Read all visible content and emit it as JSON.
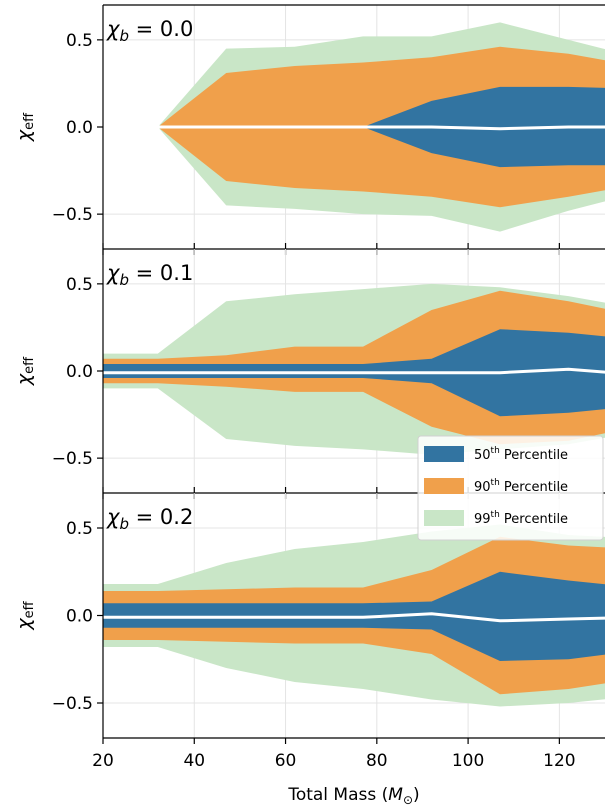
{
  "chart_data": {
    "type": "area",
    "x": [
      20,
      32,
      47,
      62,
      77,
      92,
      107,
      122,
      137
    ],
    "xlim": [
      20,
      130
    ],
    "xticks": [
      20,
      40,
      60,
      80,
      100,
      120
    ],
    "xticklabels": [
      "20",
      "40",
      "60",
      "80",
      "100",
      "120"
    ],
    "xlabel_text": "Total Mass (",
    "xlabel_symbol": "M",
    "xlabel_sub": "⊙",
    "xlabel_close": ")",
    "ylim": [
      -0.7,
      0.7
    ],
    "yticks": [
      -0.5,
      0.0,
      0.5
    ],
    "yticklabels": [
      "−0.5",
      "0.0",
      "0.5"
    ],
    "ylabel_symbol": "χ",
    "ylabel_sub": "eff",
    "grid": true,
    "colors": {
      "p50": "#3274a1",
      "p90": "#f0a04b",
      "p99": "#c9e6c7",
      "median": "#ffffff",
      "grid": "#e4e4e4"
    },
    "legend": {
      "placement": "lower-right of middle panel",
      "entries": [
        {
          "key": "p50",
          "prefix": "50",
          "sup": "th",
          "suffix": " Percentile"
        },
        {
          "key": "p90",
          "prefix": "90",
          "sup": "th",
          "suffix": " Percentile"
        },
        {
          "key": "p99",
          "prefix": "99",
          "sup": "th",
          "suffix": " Percentile"
        }
      ]
    },
    "panels": [
      {
        "label_symbol": "χ",
        "label_sub": "b",
        "label_value": " = 0.0",
        "median": [
          0,
          0,
          0,
          0,
          0,
          0,
          -0.01,
          0,
          0
        ],
        "p50": {
          "upper": [
            0,
            0,
            0,
            0,
            0,
            0.15,
            0.23,
            0.23,
            0.22
          ],
          "lower": [
            0,
            0,
            0,
            0,
            0,
            -0.15,
            -0.23,
            -0.22,
            -0.22
          ]
        },
        "p90": {
          "upper": [
            0,
            0,
            0.31,
            0.35,
            0.37,
            0.4,
            0.46,
            0.42,
            0.35
          ],
          "lower": [
            0,
            0,
            -0.31,
            -0.35,
            -0.37,
            -0.4,
            -0.46,
            -0.4,
            -0.33
          ]
        },
        "p99": {
          "upper": [
            0,
            0,
            0.45,
            0.46,
            0.52,
            0.52,
            0.6,
            0.5,
            0.4
          ],
          "lower": [
            0,
            0,
            -0.45,
            -0.47,
            -0.5,
            -0.51,
            -0.6,
            -0.48,
            -0.38
          ]
        }
      },
      {
        "label_symbol": "χ",
        "label_sub": "b",
        "label_value": " = 0.1",
        "median": [
          -0.01,
          -0.01,
          -0.01,
          -0.01,
          -0.01,
          -0.01,
          -0.01,
          0.01,
          -0.02
        ],
        "p50": {
          "upper": [
            0.04,
            0.04,
            0.04,
            0.04,
            0.04,
            0.07,
            0.24,
            0.22,
            0.18
          ],
          "lower": [
            -0.04,
            -0.04,
            -0.04,
            -0.04,
            -0.04,
            -0.07,
            -0.26,
            -0.24,
            -0.2
          ]
        },
        "p90": {
          "upper": [
            0.07,
            0.07,
            0.09,
            0.14,
            0.14,
            0.35,
            0.46,
            0.4,
            0.32
          ],
          "lower": [
            -0.07,
            -0.07,
            -0.09,
            -0.12,
            -0.12,
            -0.32,
            -0.42,
            -0.4,
            -0.32
          ]
        },
        "p99": {
          "upper": [
            0.1,
            0.1,
            0.4,
            0.44,
            0.47,
            0.5,
            0.48,
            0.43,
            0.36
          ],
          "lower": [
            -0.1,
            -0.1,
            -0.39,
            -0.43,
            -0.45,
            -0.48,
            -0.45,
            -0.42,
            -0.35
          ]
        }
      },
      {
        "label_symbol": "χ",
        "label_sub": "b",
        "label_value": " = 0.2",
        "median": [
          -0.01,
          -0.01,
          -0.01,
          -0.01,
          -0.01,
          0.01,
          -0.03,
          -0.02,
          -0.01
        ],
        "p50": {
          "upper": [
            0.07,
            0.07,
            0.07,
            0.07,
            0.07,
            0.08,
            0.25,
            0.2,
            0.16
          ],
          "lower": [
            -0.07,
            -0.07,
            -0.07,
            -0.07,
            -0.07,
            -0.08,
            -0.26,
            -0.25,
            -0.2
          ]
        },
        "p90": {
          "upper": [
            0.14,
            0.14,
            0.15,
            0.16,
            0.16,
            0.26,
            0.45,
            0.4,
            0.38
          ],
          "lower": [
            -0.14,
            -0.14,
            -0.15,
            -0.16,
            -0.16,
            -0.22,
            -0.45,
            -0.42,
            -0.36
          ]
        },
        "p99": {
          "upper": [
            0.18,
            0.18,
            0.3,
            0.38,
            0.42,
            0.48,
            0.52,
            0.46,
            0.44
          ],
          "lower": [
            -0.18,
            -0.18,
            -0.3,
            -0.38,
            -0.42,
            -0.48,
            -0.52,
            -0.5,
            -0.46
          ]
        }
      }
    ]
  }
}
